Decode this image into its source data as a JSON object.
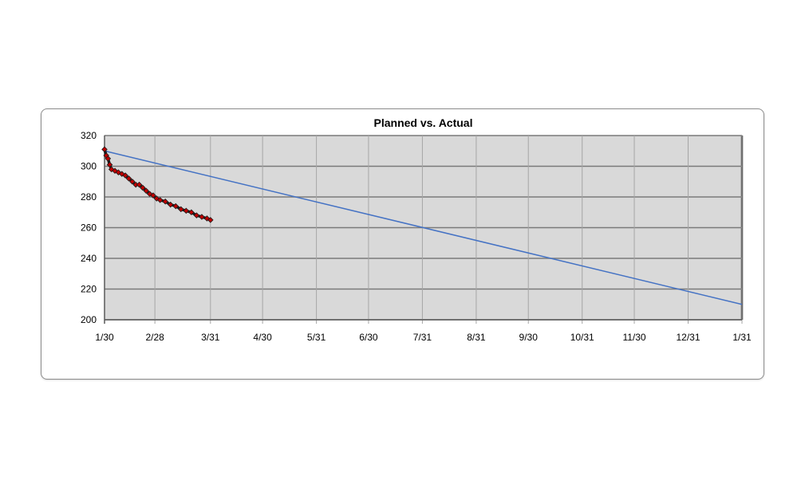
{
  "chart_data": {
    "type": "line",
    "title": "Planned vs. Actual",
    "xlabel": "",
    "ylabel": "",
    "x_ticks": [
      "1/30",
      "2/28",
      "3/31",
      "4/30",
      "5/31",
      "6/30",
      "7/31",
      "8/31",
      "9/30",
      "10/31",
      "11/30",
      "12/31",
      "1/31"
    ],
    "x_range": [
      "1/30",
      "1/31"
    ],
    "ylim": [
      200,
      320
    ],
    "y_ticks": [
      200,
      220,
      240,
      260,
      280,
      300,
      320
    ],
    "grid": true,
    "legend": "none",
    "series": [
      {
        "style": "line",
        "color": "#4472c4",
        "points": [
          {
            "x": "1/30",
            "y": 310
          },
          {
            "x": "1/31",
            "y": 210
          }
        ]
      },
      {
        "style": "line-with-markers",
        "color": "#c00000",
        "points": [
          {
            "x": "1/30",
            "y": 311
          },
          {
            "x": "1/31",
            "y": 307
          },
          {
            "x": "2/1",
            "y": 305
          },
          {
            "x": "2/2",
            "y": 301
          },
          {
            "x": "2/3",
            "y": 298
          },
          {
            "x": "2/5",
            "y": 297
          },
          {
            "x": "2/7",
            "y": 296
          },
          {
            "x": "2/9",
            "y": 295
          },
          {
            "x": "2/11",
            "y": 294
          },
          {
            "x": "2/13",
            "y": 292
          },
          {
            "x": "2/15",
            "y": 290
          },
          {
            "x": "2/17",
            "y": 288
          },
          {
            "x": "2/19",
            "y": 288
          },
          {
            "x": "2/21",
            "y": 286
          },
          {
            "x": "2/23",
            "y": 284
          },
          {
            "x": "2/25",
            "y": 282
          },
          {
            "x": "2/27",
            "y": 281
          },
          {
            "x": "2/29",
            "y": 279
          },
          {
            "x": "3/2",
            "y": 278
          },
          {
            "x": "3/5",
            "y": 277
          },
          {
            "x": "3/8",
            "y": 275
          },
          {
            "x": "3/11",
            "y": 274
          },
          {
            "x": "3/14",
            "y": 272
          },
          {
            "x": "3/17",
            "y": 271
          },
          {
            "x": "3/20",
            "y": 270
          },
          {
            "x": "3/23",
            "y": 268
          },
          {
            "x": "3/26",
            "y": 267
          },
          {
            "x": "3/29",
            "y": 266
          },
          {
            "x": "3/31",
            "y": 265
          }
        ]
      }
    ]
  },
  "colors": {
    "plot_background": "#d9d9d9",
    "gridline": "#8c8c8c",
    "planned_line": "#4472c4",
    "actual_marker": "#c00000",
    "actual_outline": "#1a1a1a"
  }
}
